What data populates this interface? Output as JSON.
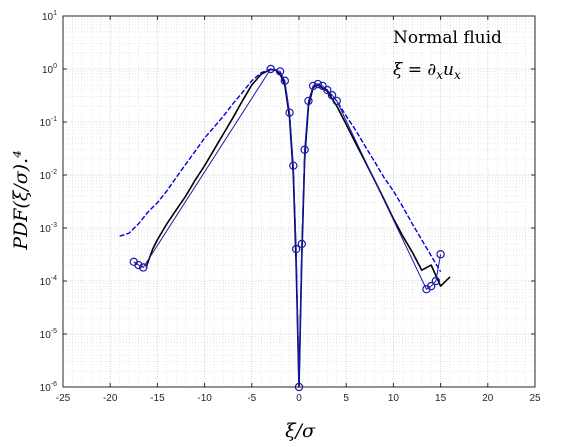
{
  "chart_data": {
    "type": "line",
    "title": "",
    "xlabel": "ξ/σ",
    "ylabel": "PDF(ξ/σ).⁴",
    "xlim": [
      -25,
      25
    ],
    "ylim": [
      1e-06,
      10
    ],
    "yscale": "log",
    "grid": true,
    "minor_grid": true,
    "x_ticks": [
      -25,
      -20,
      -15,
      -10,
      -5,
      0,
      5,
      10,
      15,
      20,
      25
    ],
    "x_tick_labels": [
      "-25",
      "-20",
      "-15",
      "-10",
      "-5",
      "0",
      "5",
      "10",
      "15",
      "20",
      "25"
    ],
    "y_ticks": [
      1e-06,
      1e-05,
      0.0001,
      0.001,
      0.01,
      0.1,
      1,
      10
    ],
    "y_tick_bases": [
      "10",
      "10",
      "10",
      "10",
      "10",
      "10",
      "10",
      "10"
    ],
    "y_tick_exponents": [
      "-6",
      "-5",
      "-4",
      "-3",
      "-2",
      "-1",
      "0",
      "1"
    ],
    "annotations": {
      "line1": "Normal  fluid",
      "line2_lhs": "ξ = ∂",
      "line2_sub1": "x",
      "line2_mid": "u",
      "line2_sub2": "x"
    },
    "series": [
      {
        "style": "solid",
        "color": "#000000",
        "x": [
          -16.2,
          -15.5,
          -15,
          -14,
          -13,
          -12,
          -11,
          -10,
          -9,
          -8,
          -7,
          -6,
          -5,
          -4,
          -3,
          -2.5,
          -2,
          -1.5,
          -1,
          -0.6,
          -0.3,
          0,
          0.3,
          0.6,
          1,
          1.5,
          2,
          3,
          4,
          5,
          6,
          7,
          8,
          9,
          10,
          11,
          12,
          13,
          14,
          15,
          16
        ],
        "y": [
          0.00018,
          0.0004,
          0.0006,
          0.0012,
          0.0022,
          0.004,
          0.008,
          0.015,
          0.03,
          0.06,
          0.12,
          0.25,
          0.5,
          0.8,
          0.98,
          0.95,
          0.8,
          0.5,
          0.12,
          0.01,
          0.0002,
          8e-07,
          0.0003,
          0.02,
          0.2,
          0.45,
          0.5,
          0.38,
          0.2,
          0.09,
          0.04,
          0.018,
          0.008,
          0.0035,
          0.0015,
          0.0007,
          0.00035,
          0.00016,
          0.0002,
          8e-05,
          0.00012
        ]
      },
      {
        "style": "dashed",
        "color": "#0000dd",
        "x": [
          -19,
          -18,
          -17,
          -16,
          -15,
          -14,
          -13,
          -12,
          -11,
          -10,
          -9,
          -8,
          -7,
          -6,
          -5,
          -4,
          -3,
          -2.5,
          -2,
          -1.5,
          -1,
          -0.6,
          -0.3,
          0,
          0.3,
          0.6,
          1,
          1.5,
          2,
          3,
          4,
          5,
          6,
          7,
          8,
          9,
          10,
          11,
          12,
          13,
          14,
          15
        ],
        "y": [
          0.0007,
          0.0008,
          0.0012,
          0.002,
          0.003,
          0.005,
          0.009,
          0.016,
          0.028,
          0.05,
          0.08,
          0.13,
          0.22,
          0.36,
          0.6,
          0.85,
          1.0,
          0.97,
          0.85,
          0.55,
          0.14,
          0.012,
          0.0003,
          1e-06,
          0.0004,
          0.025,
          0.22,
          0.47,
          0.52,
          0.4,
          0.25,
          0.13,
          0.07,
          0.035,
          0.018,
          0.009,
          0.005,
          0.0025,
          0.0012,
          0.0006,
          0.0003,
          0.00015
        ]
      },
      {
        "style": "circles",
        "color": "#1a1aa6",
        "x": [
          -17.5,
          -17,
          -16.5,
          -3,
          -2,
          -1.5,
          -1,
          -0.6,
          -0.3,
          0,
          0.3,
          0.6,
          1,
          1.5,
          2,
          2.5,
          3,
          3.5,
          4,
          13.5,
          14,
          14.5,
          15
        ],
        "y": [
          0.00023,
          0.0002,
          0.00018,
          1.0,
          0.9,
          0.6,
          0.15,
          0.015,
          0.0004,
          1e-06,
          0.0005,
          0.03,
          0.25,
          0.48,
          0.52,
          0.48,
          0.4,
          0.32,
          0.25,
          7e-05,
          8e-05,
          0.0001,
          0.00032
        ]
      }
    ]
  }
}
